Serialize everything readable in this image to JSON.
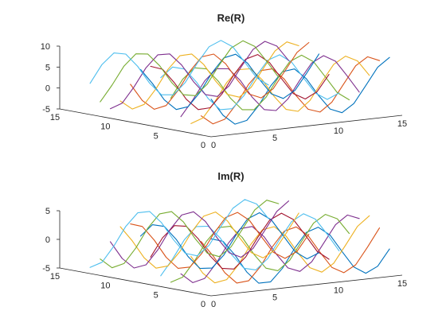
{
  "colors": [
    "#0072BD",
    "#D95319",
    "#EDB120",
    "#7E2F8E",
    "#77AC30",
    "#4DBEEE",
    "#A2142F"
  ],
  "chart_data": [
    {
      "type": "line3d",
      "title": "Re(R)",
      "series_count": 13,
      "xlim": [
        0,
        15
      ],
      "ylim": [
        0,
        15
      ],
      "zlim": [
        -5,
        10
      ],
      "xticks": [
        0,
        5,
        10,
        15
      ],
      "yticks": [
        0,
        5,
        10,
        15
      ],
      "zticks": [
        -5,
        0,
        5,
        10
      ],
      "x_tick_labels": [
        "0",
        "5",
        "10",
        "15"
      ],
      "y_tick_labels": [
        "0",
        "5",
        "10",
        "15"
      ],
      "z_tick_labels": [
        "-5",
        "0",
        "5",
        "10"
      ],
      "x_range": [
        0.8,
        14.8
      ],
      "y_range": [
        1,
        13
      ],
      "amplitude": 6.0,
      "offset": 2.5,
      "period": 8.0,
      "phase": 1.6
    },
    {
      "type": "line3d",
      "title": "Im(R)",
      "series_count": 13,
      "xlim": [
        0,
        15
      ],
      "ylim": [
        0,
        15
      ],
      "zlim": [
        -5,
        5
      ],
      "xticks": [
        0,
        5,
        10,
        15
      ],
      "yticks": [
        0,
        5,
        10,
        15
      ],
      "zticks": [
        -5,
        0,
        5
      ],
      "x_tick_labels": [
        "0",
        "5",
        "10",
        "15"
      ],
      "y_tick_labels": [
        "0",
        "5",
        "10",
        "15"
      ],
      "z_tick_labels": [
        "-5",
        "0",
        "5"
      ],
      "x_range": [
        0.8,
        14.8
      ],
      "y_range": [
        1,
        13
      ],
      "amplitude": 4.5,
      "offset": 0.0,
      "period": 8.0,
      "phase": 0.0
    }
  ]
}
